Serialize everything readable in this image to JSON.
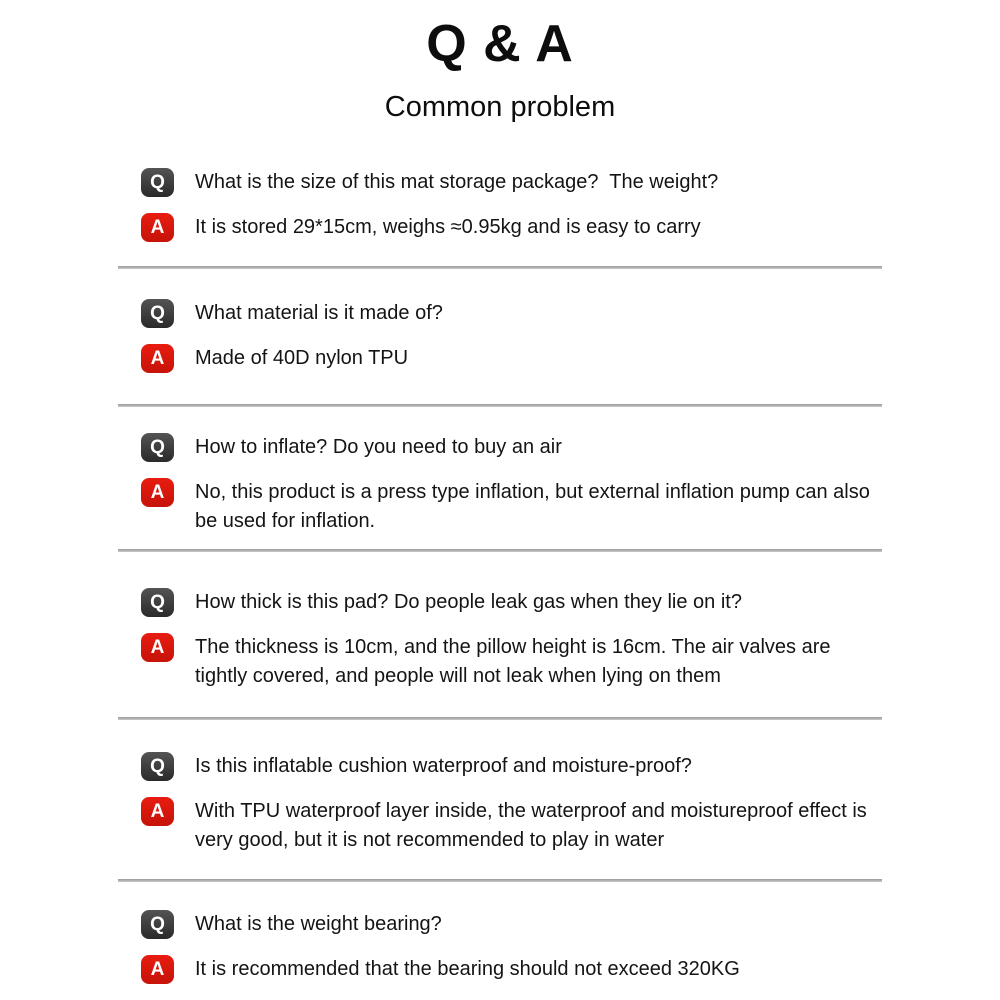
{
  "page": {
    "title": "Q & A",
    "subtitle": "Common problem"
  },
  "badges": {
    "q_label": "Q",
    "a_label": "A",
    "q_color": "#3a3a3a",
    "a_color": "#e81c10",
    "text_color": "#ffffff"
  },
  "qa_items": [
    {
      "question": "What is the size of this mat storage package?  The weight?",
      "answer": "It is stored 29*15cm, weighs ≈0.95kg and is easy to carry"
    },
    {
      "question": "What material is it made of?",
      "answer": "Made of 40D nylon TPU"
    },
    {
      "question": "How to inflate? Do you need to buy an air",
      "answer": "No, this product is a press type inflation, but external inflation pump can also be used for inflation."
    },
    {
      "question": "How thick is this pad? Do people leak gas when they lie on it?",
      "answer": "The thickness is 10cm, and the pillow height is 16cm. The air valves are tightly covered, and people will not leak when lying on them"
    },
    {
      "question": "Is this inflatable cushion waterproof and moisture-proof?",
      "answer": "With TPU waterproof layer inside, the waterproof and moistureproof effect is very good, but it is not recommended to play in water"
    },
    {
      "question": "What is the weight bearing?",
      "answer": "It is recommended that the bearing should not exceed 320KG"
    }
  ]
}
